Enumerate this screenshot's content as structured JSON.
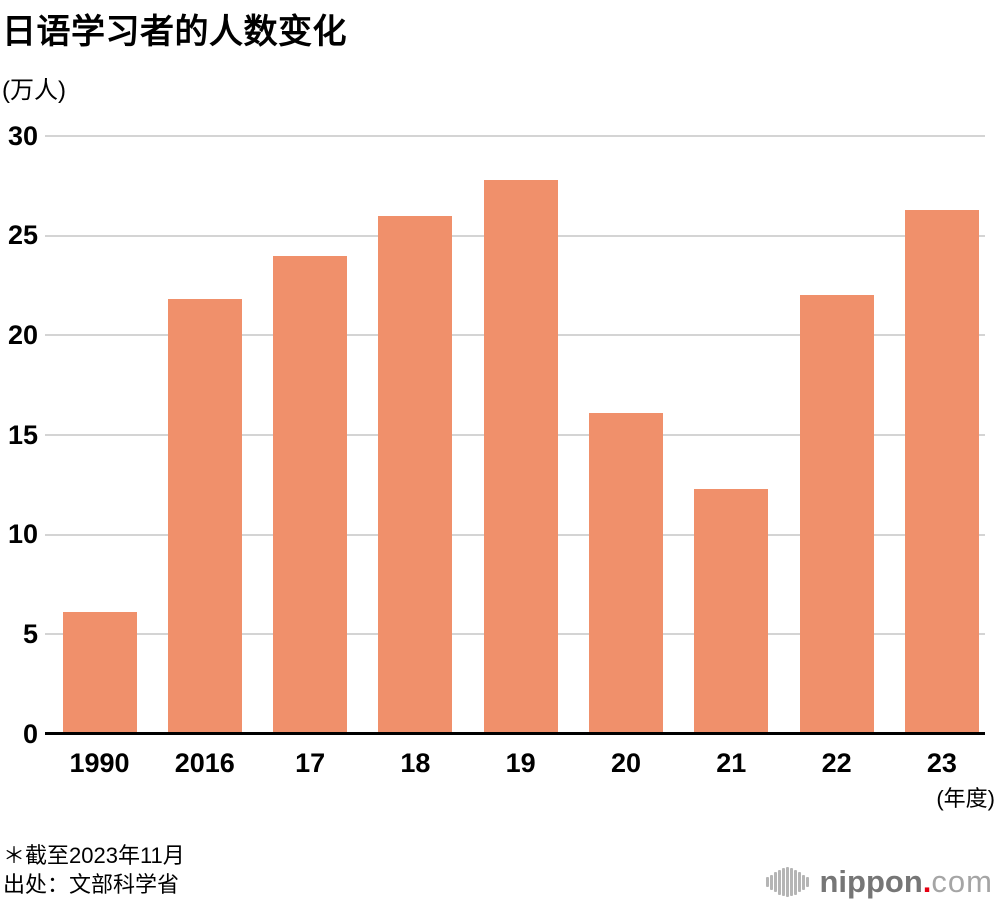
{
  "chart": {
    "title": "日语学习者的人数变化",
    "unit_label": "(万人)",
    "xaxis_unit": "(年度)"
  },
  "chart_data": {
    "type": "bar",
    "title": "日语学习者的人数变化",
    "categories": [
      "1990",
      "2016",
      "17",
      "18",
      "19",
      "20",
      "21",
      "22",
      "23"
    ],
    "values": [
      6.1,
      21.8,
      24.0,
      26.0,
      27.8,
      16.1,
      12.3,
      22.0,
      26.3
    ],
    "xlabel": "(年度)",
    "ylabel": "(万人)",
    "ylim": [
      0,
      30
    ],
    "yticks": [
      0,
      5,
      10,
      15,
      20,
      25,
      30
    ],
    "grid": true,
    "legend": "none",
    "bar_color": "#F0906B"
  },
  "footer": {
    "note": "＊截至2023年11月",
    "source": "出处：文部科学省"
  },
  "logo": {
    "name": "nippon",
    "dot": ".",
    "tld": "com",
    "icon_bar_heights": [
      10,
      15,
      20,
      25,
      28,
      30,
      28,
      25,
      20,
      15,
      10
    ]
  },
  "colors": {
    "bar": "#F0906B",
    "gridline": "#D4D4D4",
    "axis": "#000000",
    "text": "#000000",
    "logo_gray": "#767676",
    "logo_light": "#A5A5A5",
    "logo_red": "#E60012",
    "logo_icon": "#B5B5B5"
  }
}
